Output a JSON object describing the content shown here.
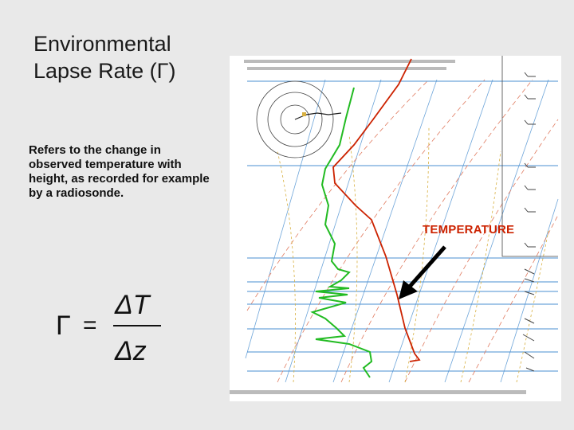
{
  "slide": {
    "title_line1": "Environmental",
    "title_line2": "Lapse Rate (Γ)",
    "description": "Refers to the change in observed temperature with height, as recorded for example by a radiosonde.",
    "formula": {
      "lhs": "Γ",
      "equals": "=",
      "numerator": "ΔT",
      "denominator": "Δz"
    }
  },
  "sounding": {
    "annotation": "TEMPERATURE",
    "colors": {
      "temperature": "#cc2200",
      "dewpoint": "#22bb22",
      "isotherm": "#4a8fd0",
      "dry_adiabat": "#e07b60",
      "moist_adiabat": "#d8b040",
      "mixing_ratio": "#7aa870",
      "arrow": "#000000"
    }
  }
}
